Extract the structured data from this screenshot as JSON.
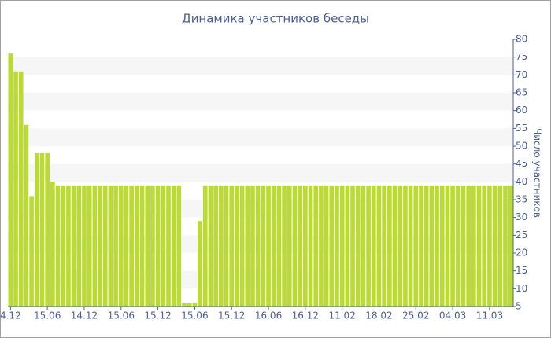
{
  "chart_data": {
    "type": "bar",
    "title": "Динамика участников беседы",
    "y_label": "Число участников",
    "categories": [
      "4.12",
      null,
      null,
      null,
      null,
      null,
      null,
      "15.06",
      null,
      null,
      null,
      null,
      null,
      null,
      "14.12",
      null,
      null,
      null,
      null,
      null,
      null,
      "15.06",
      null,
      null,
      null,
      null,
      null,
      null,
      "15.12",
      null,
      null,
      null,
      null,
      null,
      null,
      "15.06",
      null,
      null,
      null,
      null,
      null,
      null,
      "15.12",
      null,
      null,
      null,
      null,
      null,
      null,
      "16.06",
      null,
      null,
      null,
      null,
      null,
      null,
      "16.12",
      null,
      null,
      null,
      null,
      null,
      null,
      "11.02",
      null,
      null,
      null,
      null,
      null,
      null,
      "18.02",
      null,
      null,
      null,
      null,
      null,
      null,
      "25.02",
      null,
      null,
      null,
      null,
      null,
      null,
      "04.03",
      null,
      null,
      null,
      null,
      null,
      null,
      "11.03",
      null,
      null,
      null,
      null
    ],
    "values": [
      76,
      71,
      71,
      56,
      36,
      48,
      48,
      48,
      40,
      39,
      39,
      39,
      39,
      39,
      39,
      39,
      39,
      39,
      39,
      39,
      39,
      39,
      39,
      39,
      39,
      39,
      39,
      39,
      39,
      39,
      39,
      39,
      39,
      6,
      6,
      6,
      29,
      39,
      39,
      39,
      39,
      39,
      39,
      39,
      39,
      39,
      39,
      39,
      39,
      39,
      39,
      39,
      39,
      39,
      39,
      39,
      39,
      39,
      39,
      39,
      39,
      39,
      39,
      39,
      39,
      39,
      39,
      39,
      39,
      39,
      39,
      39,
      39,
      39,
      39,
      39,
      39,
      39,
      39,
      39,
      39,
      39,
      39,
      39,
      39,
      39,
      39,
      39,
      39,
      39,
      39,
      39,
      39,
      39,
      39,
      39
    ],
    "color": "#bada34",
    "ylim": [
      5,
      80
    ],
    "yticks": [
      5,
      10,
      15,
      20,
      25,
      30,
      35,
      40,
      45,
      50,
      55,
      60,
      65,
      70,
      75,
      80
    ],
    "grid": "bands",
    "y_axis_side": "right"
  }
}
